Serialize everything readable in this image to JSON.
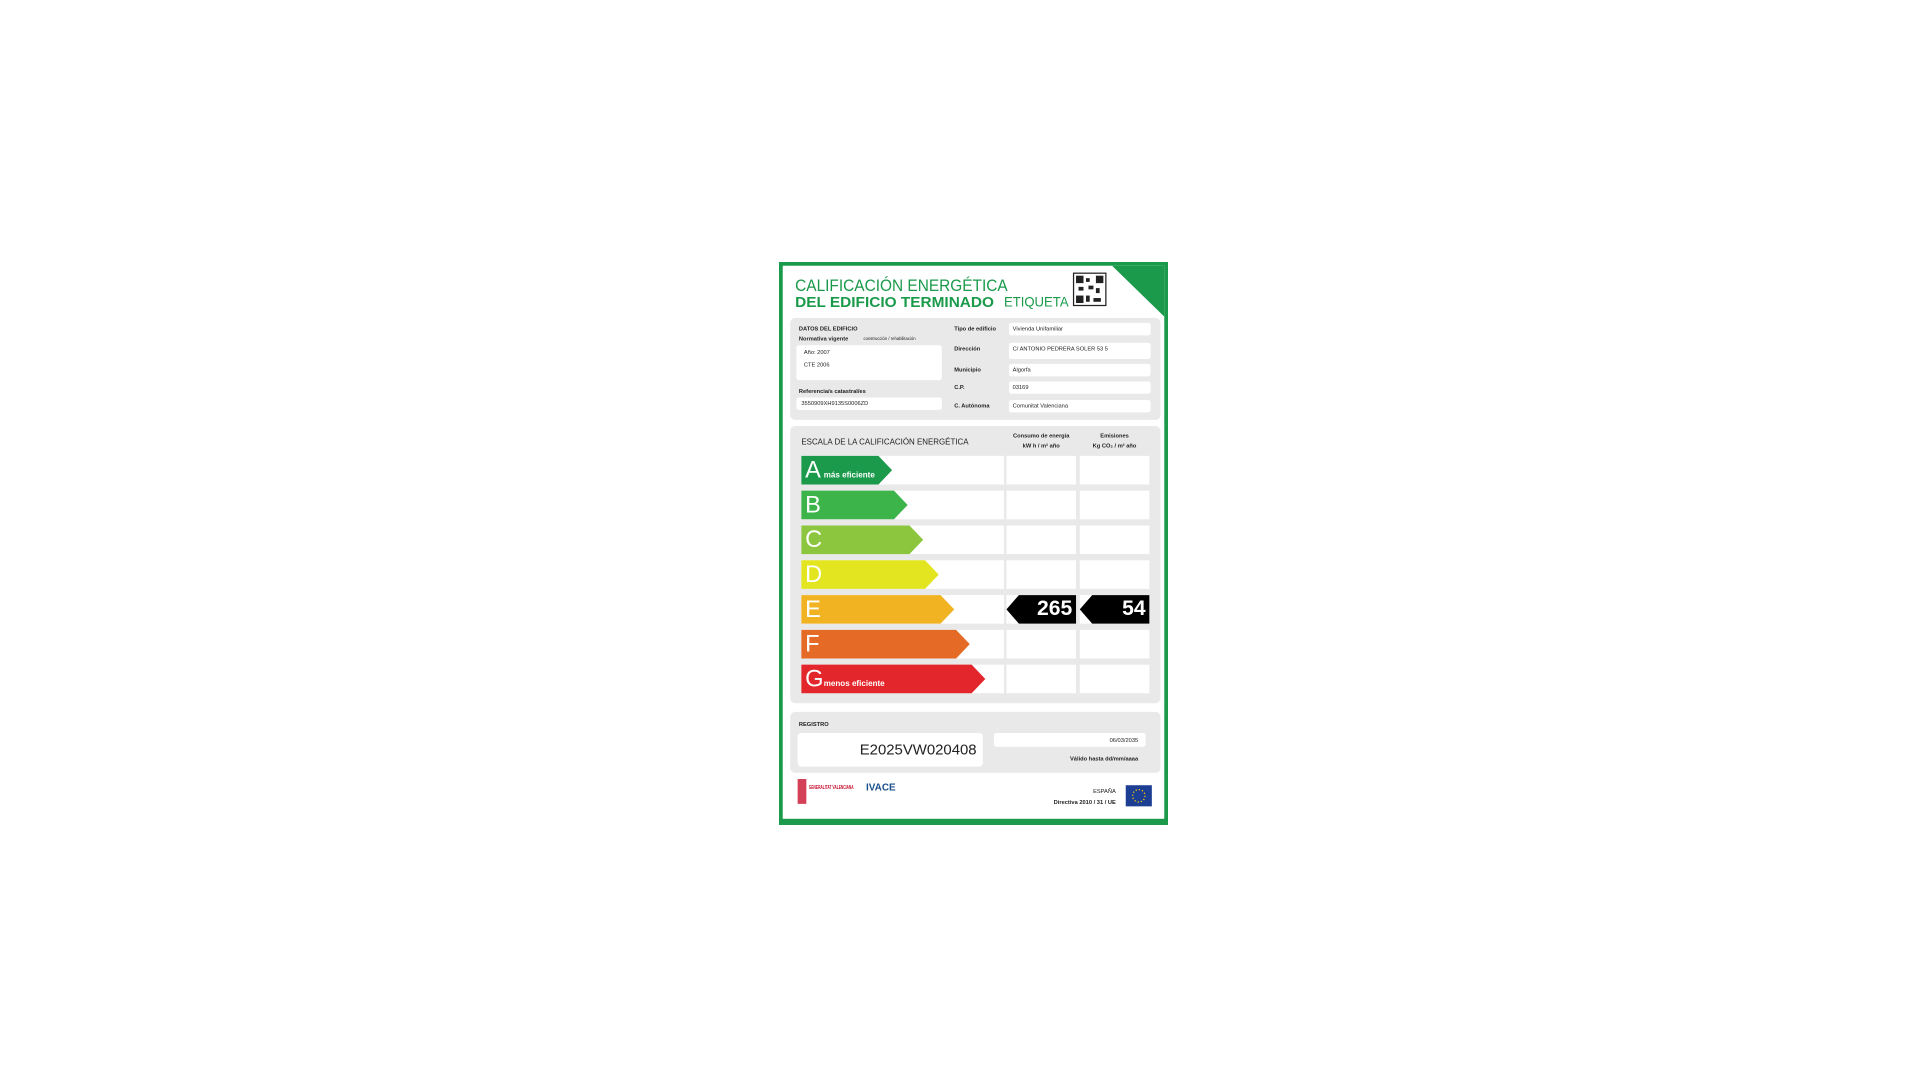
{
  "header": {
    "title_line1": "CALIFICACIÓN ENERGÉTICA",
    "title_line2": "DEL EDIFICIO TERMINADO",
    "label_word": "ETIQUETA"
  },
  "building": {
    "heading": "DATOS DEL EDIFICIO",
    "standard_label": "Normativa vigente",
    "standard_note": "construcción / rehabilitación",
    "year": "Año: 2007",
    "code": "CTE 2006",
    "cadastral_label": "Referencia/s catastral/es",
    "cadastral_ref": "3550909XH9135S0006ZD",
    "fields": [
      {
        "label": "Tipo de edificio",
        "value": "Vivienda Unifamiliar"
      },
      {
        "label": "Dirección",
        "value": "C/ ANTONIO PEDRERA SOLER 53 5"
      },
      {
        "label": "Municipio",
        "value": "Algorfa"
      },
      {
        "label": "C.P.",
        "value": "03169"
      },
      {
        "label": "C. Autónoma",
        "value": "Comunitat Valenciana"
      }
    ]
  },
  "scale": {
    "heading": "ESCALA DE LA CALIFICACIÓN ENERGÉTICA",
    "consumption_heading": "Consumo de energía",
    "consumption_unit": "kW h / m² año",
    "emissions_heading": "Emisiones",
    "emissions_unit": "Kg CO₂ / m² año",
    "classes": [
      {
        "letter": "A",
        "note": "más eficiente",
        "color": "#1a9a4a"
      },
      {
        "letter": "B",
        "color": "#3cb44a"
      },
      {
        "letter": "C",
        "color": "#8cc63f"
      },
      {
        "letter": "D",
        "color": "#e2e51f"
      },
      {
        "letter": "E",
        "color": "#f1b322",
        "consumption": 265,
        "emissions": 54
      },
      {
        "letter": "F",
        "color": "#e56a25"
      },
      {
        "letter": "G",
        "note": "menos eficiente",
        "color": "#e3262b"
      }
    ]
  },
  "registry": {
    "heading": "REGISTRO",
    "number": "E2025VW020408",
    "valid_date": "06/03/2035",
    "valid_label": "Válido hasta dd/mm/aaaa"
  },
  "footer": {
    "gva": "GENERALITAT VALENCIANA",
    "ivace": "IVACE",
    "country": "ESPAÑA",
    "directive": "Directiva 2010 / 31 / UE"
  }
}
